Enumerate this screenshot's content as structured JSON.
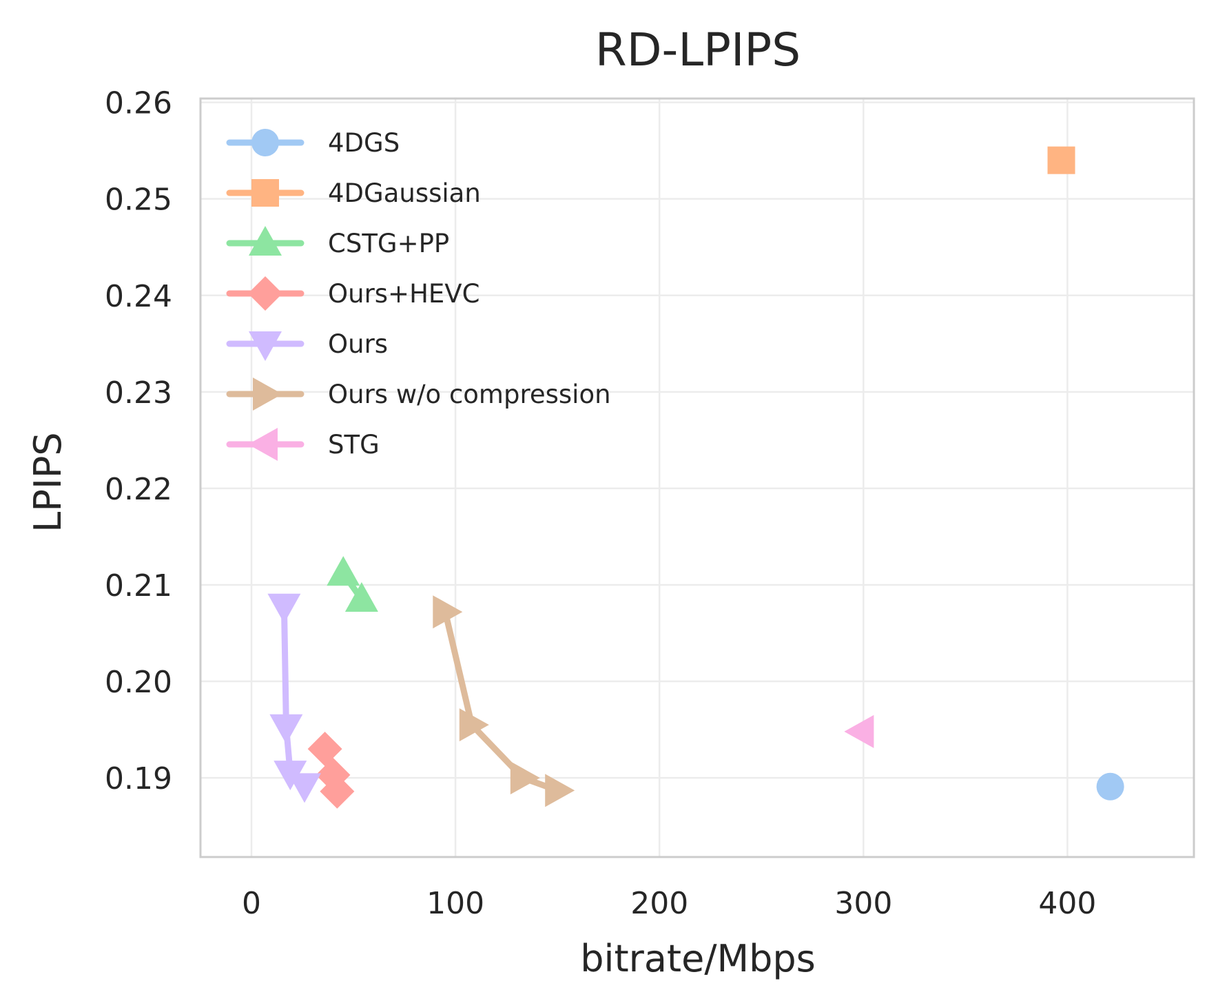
{
  "chart_data": {
    "type": "line",
    "title": "RD-LPIPS",
    "xlabel": "bitrate/Mbps",
    "ylabel": "LPIPS",
    "xlim": [
      -25,
      462
    ],
    "ylim": [
      0.1818,
      0.2604
    ],
    "xticks": [
      0,
      100,
      200,
      300,
      400
    ],
    "xtick_labels": [
      "0",
      "100",
      "200",
      "300",
      "400"
    ],
    "yticks": [
      0.19,
      0.2,
      0.21,
      0.22,
      0.23,
      0.24,
      0.25,
      0.26
    ],
    "ytick_labels": [
      "0.19",
      "0.20",
      "0.21",
      "0.22",
      "0.23",
      "0.24",
      "0.25",
      "0.26"
    ],
    "grid": true,
    "legend_position": "top-left",
    "series": [
      {
        "name": "4DGS",
        "marker": "circle",
        "color": "#a1c9f4",
        "x": [
          421
        ],
        "y": [
          0.1891
        ]
      },
      {
        "name": "4DGaussian",
        "marker": "square",
        "color": "#ffb482",
        "x": [
          397
        ],
        "y": [
          0.254
        ]
      },
      {
        "name": "CSTG+PP",
        "marker": "triangle-up",
        "color": "#8de5a1",
        "x": [
          45,
          54
        ],
        "y": [
          0.2112,
          0.2085
        ]
      },
      {
        "name": "Ours+HEVC",
        "marker": "diamond",
        "color": "#ff9f9b",
        "x": [
          36,
          40,
          42
        ],
        "y": [
          0.193,
          0.1903,
          0.1886
        ]
      },
      {
        "name": "Ours",
        "marker": "triangle-down",
        "color": "#d0bbff",
        "x": [
          16,
          17,
          19,
          26
        ],
        "y": [
          0.2078,
          0.1953,
          0.1905,
          0.1892
        ]
      },
      {
        "name": "Ours w/o compression",
        "marker": "triangle-right",
        "color": "#debb9b",
        "x": [
          95,
          108,
          133,
          150
        ],
        "y": [
          0.2072,
          0.1955,
          0.19,
          0.1887
        ]
      },
      {
        "name": "STG",
        "marker": "triangle-left",
        "color": "#fab0e4",
        "x": [
          299
        ],
        "y": [
          0.1948
        ]
      }
    ]
  }
}
